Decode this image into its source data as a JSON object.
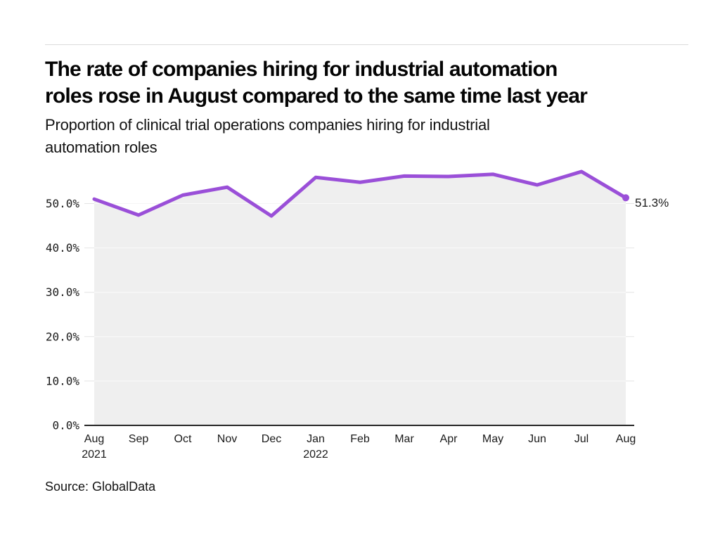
{
  "chart_data": {
    "type": "area",
    "title": "The rate of companies hiring for industrial automation roles rose in August compared to the same time last year",
    "title_lines": [
      "The rate of companies hiring for industrial automation",
      "roles rose in August compared to the same time last year"
    ],
    "subtitle": "Proportion of clinical trial operations companies hiring for industrial automation roles",
    "subtitle_lines": [
      "Proportion of clinical trial operations companies hiring for industrial",
      "automation roles"
    ],
    "categories": [
      "Aug",
      "Sep",
      "Oct",
      "Nov",
      "Dec",
      "Jan",
      "Feb",
      "Mar",
      "Apr",
      "May",
      "Jun",
      "Jul",
      "Aug"
    ],
    "x_year_labels": [
      "2021",
      "",
      "",
      "",
      "",
      "2022",
      "",
      "",
      "",
      "",
      "",
      "",
      ""
    ],
    "values": [
      51.0,
      47.4,
      51.9,
      53.7,
      47.2,
      55.9,
      54.8,
      56.2,
      56.1,
      56.6,
      54.2,
      57.2,
      51.3
    ],
    "unit": "%",
    "xlabel": "",
    "ylabel": "",
    "ylim": [
      0,
      58
    ],
    "yticks": [
      0,
      10,
      20,
      30,
      40,
      50
    ],
    "ytick_labels": [
      "0.0%",
      "10.0%",
      "20.0%",
      "30.0%",
      "40.0%",
      "50.0%"
    ],
    "grid": "horizontal",
    "legend": "none",
    "end_label": "51.3%",
    "colors": {
      "line": "#9a4fd8",
      "area_fill": "#efefef",
      "grid": "#e4e4e4",
      "grid_over_fill": "rgba(255,255,255,0.65)",
      "axis": "#262626",
      "tick_text": "#1a1a1a"
    }
  },
  "source": {
    "text": "Source: GlobalData"
  }
}
